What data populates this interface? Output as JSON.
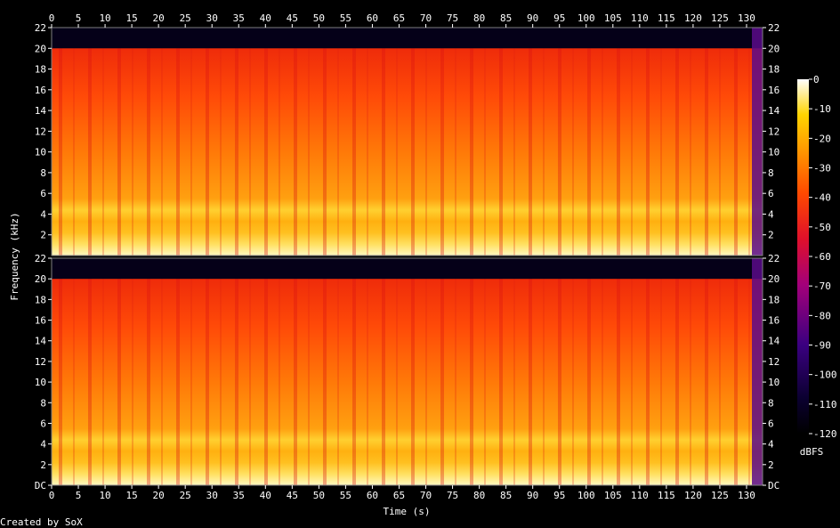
{
  "chart_data": {
    "type": "heatmap",
    "xlabel": "Time (s)",
    "ylabel": "Frequency (kHz)",
    "x_ticks": [
      0,
      5,
      10,
      15,
      20,
      25,
      30,
      35,
      40,
      45,
      50,
      55,
      60,
      65,
      70,
      75,
      80,
      85,
      90,
      95,
      100,
      105,
      110,
      115,
      120,
      125,
      130
    ],
    "xlim": [
      0,
      133
    ],
    "y_ticks": [
      "DC",
      "2",
      "4",
      "6",
      "8",
      "10",
      "12",
      "14",
      "16",
      "18",
      "20",
      "22"
    ],
    "ylim_khz": [
      0,
      22
    ],
    "channels": 2,
    "colorbar": {
      "label": "dBFS",
      "ticks": [
        0,
        -10,
        -20,
        -30,
        -40,
        -50,
        -60,
        -70,
        -80,
        -90,
        -100,
        -110,
        -120
      ],
      "range": [
        -120,
        0
      ],
      "palette": [
        "#000000",
        "#1a0050",
        "#6a00a8",
        "#c2185b",
        "#ff2010",
        "#ff7a00",
        "#ffc400",
        "#ffffff"
      ]
    },
    "footer": "Created by SoX"
  }
}
